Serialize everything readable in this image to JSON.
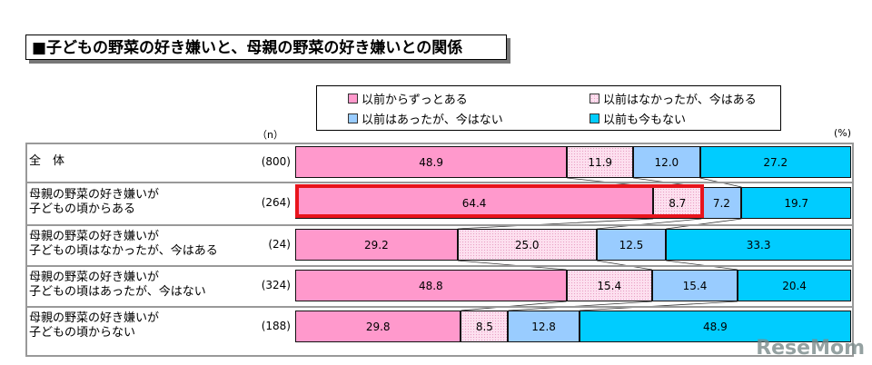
{
  "chart_data": {
    "type": "bar",
    "orientation": "horizontal",
    "stacked": "100%",
    "title": "■子どもの野菜の好き嫌いと、母親の野菜の好き嫌いとの関係",
    "n_header": "（n）",
    "unit": "(%)",
    "legend_position": "top-right",
    "series": [
      {
        "name": "以前からずっとある",
        "color": "#ff99cc",
        "pattern": false,
        "values": [
          48.9,
          64.4,
          29.2,
          48.8,
          29.8
        ]
      },
      {
        "name": "以前はなかったが、今はある",
        "color": "#fde0ef",
        "pattern": true,
        "values": [
          11.9,
          8.7,
          25.0,
          15.4,
          8.5
        ]
      },
      {
        "name": "以前はあったが、今はない",
        "color": "#99ccff",
        "pattern": false,
        "values": [
          12.0,
          7.2,
          12.5,
          15.4,
          12.8
        ]
      },
      {
        "name": "以前も今もない",
        "color": "#00ccff",
        "pattern": false,
        "values": [
          27.2,
          19.7,
          33.3,
          20.4,
          48.9
        ]
      }
    ],
    "categories": [
      {
        "label": [
          "全　体"
        ],
        "n": "(800)"
      },
      {
        "label": [
          "母親の野菜の好き嫌いが",
          "子どもの頃からある"
        ],
        "n": "(264)"
      },
      {
        "label": [
          "母親の野菜の好き嫌いが",
          "子どもの頃はなかったが、今はある"
        ],
        "n": "(24)"
      },
      {
        "label": [
          "母親の野菜の好き嫌いが",
          "子どもの頃はあったが、今はない"
        ],
        "n": "(324)"
      },
      {
        "label": [
          "母親の野菜の好き嫌いが",
          "子どもの頃からない"
        ],
        "n": "(188)"
      }
    ],
    "highlight": {
      "row": 1,
      "segments": [
        0,
        1
      ],
      "color": "#e8141c"
    }
  },
  "watermark": "ReseMom"
}
